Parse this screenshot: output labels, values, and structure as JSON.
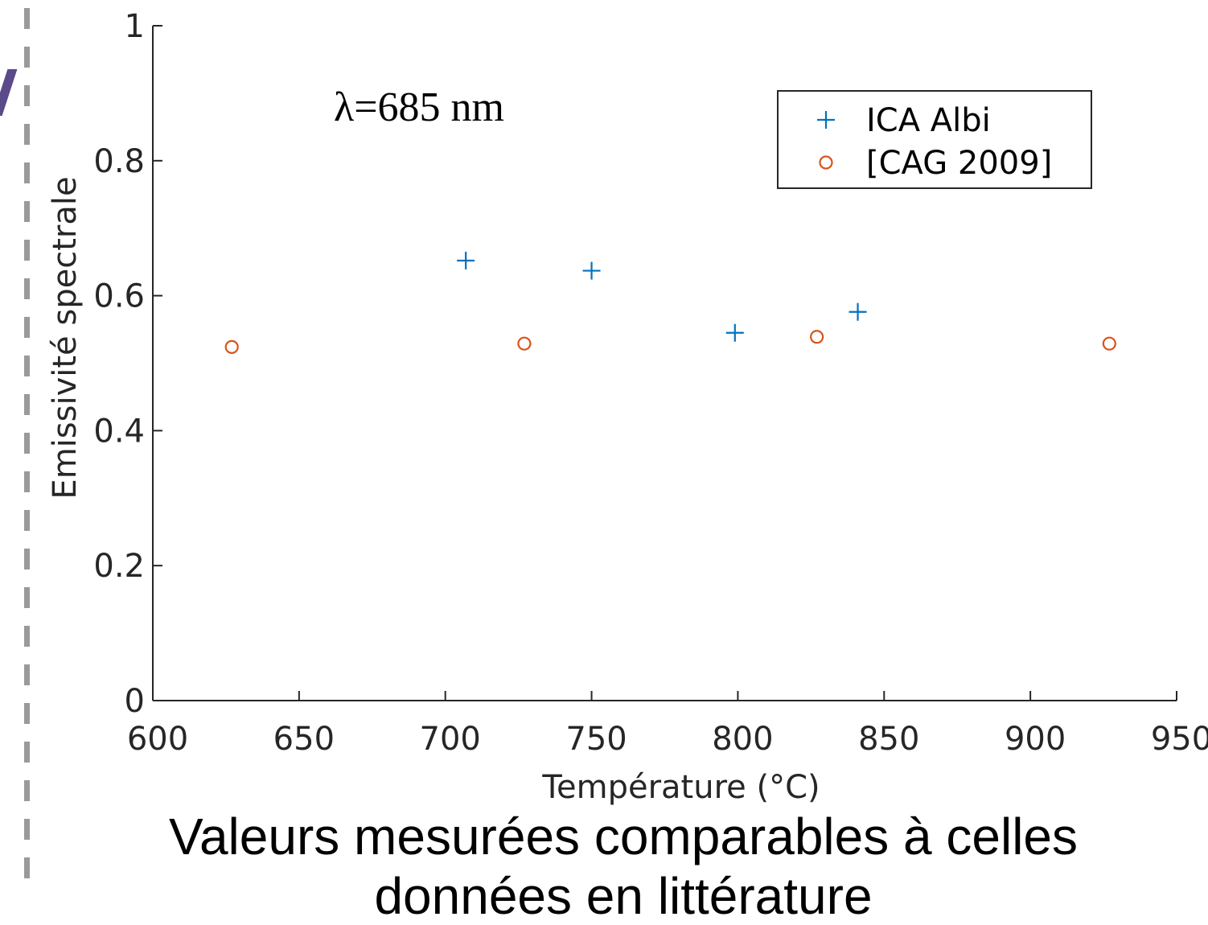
{
  "chart_data": {
    "type": "scatter",
    "xlabel": "Température (°C)",
    "ylabel": "Emissivité spectrale",
    "xlim": [
      600,
      950
    ],
    "ylim": [
      0,
      1
    ],
    "xticks": [
      600,
      650,
      700,
      750,
      800,
      850,
      900,
      950
    ],
    "yticks": [
      0,
      0.2,
      0.4,
      0.6,
      0.8,
      1
    ],
    "annotation": "λ=685 nm",
    "legend_position": "top-right",
    "grid": false,
    "series": [
      {
        "name": "ICA Albi",
        "marker": "plus",
        "color": "#0072bd",
        "points": [
          {
            "x": 707,
            "y": 0.652
          },
          {
            "x": 750,
            "y": 0.637
          },
          {
            "x": 799,
            "y": 0.545
          },
          {
            "x": 841,
            "y": 0.576
          }
        ]
      },
      {
        "name": "[CAG 2009]",
        "marker": "circle",
        "color": "#d95319",
        "points": [
          {
            "x": 627,
            "y": 0.524
          },
          {
            "x": 727,
            "y": 0.529
          },
          {
            "x": 827,
            "y": 0.539
          },
          {
            "x": 927,
            "y": 0.529
          }
        ]
      }
    ]
  },
  "caption": {
    "line1": "Valeurs mesurées comparables à celles",
    "line2": "données en littérature"
  }
}
